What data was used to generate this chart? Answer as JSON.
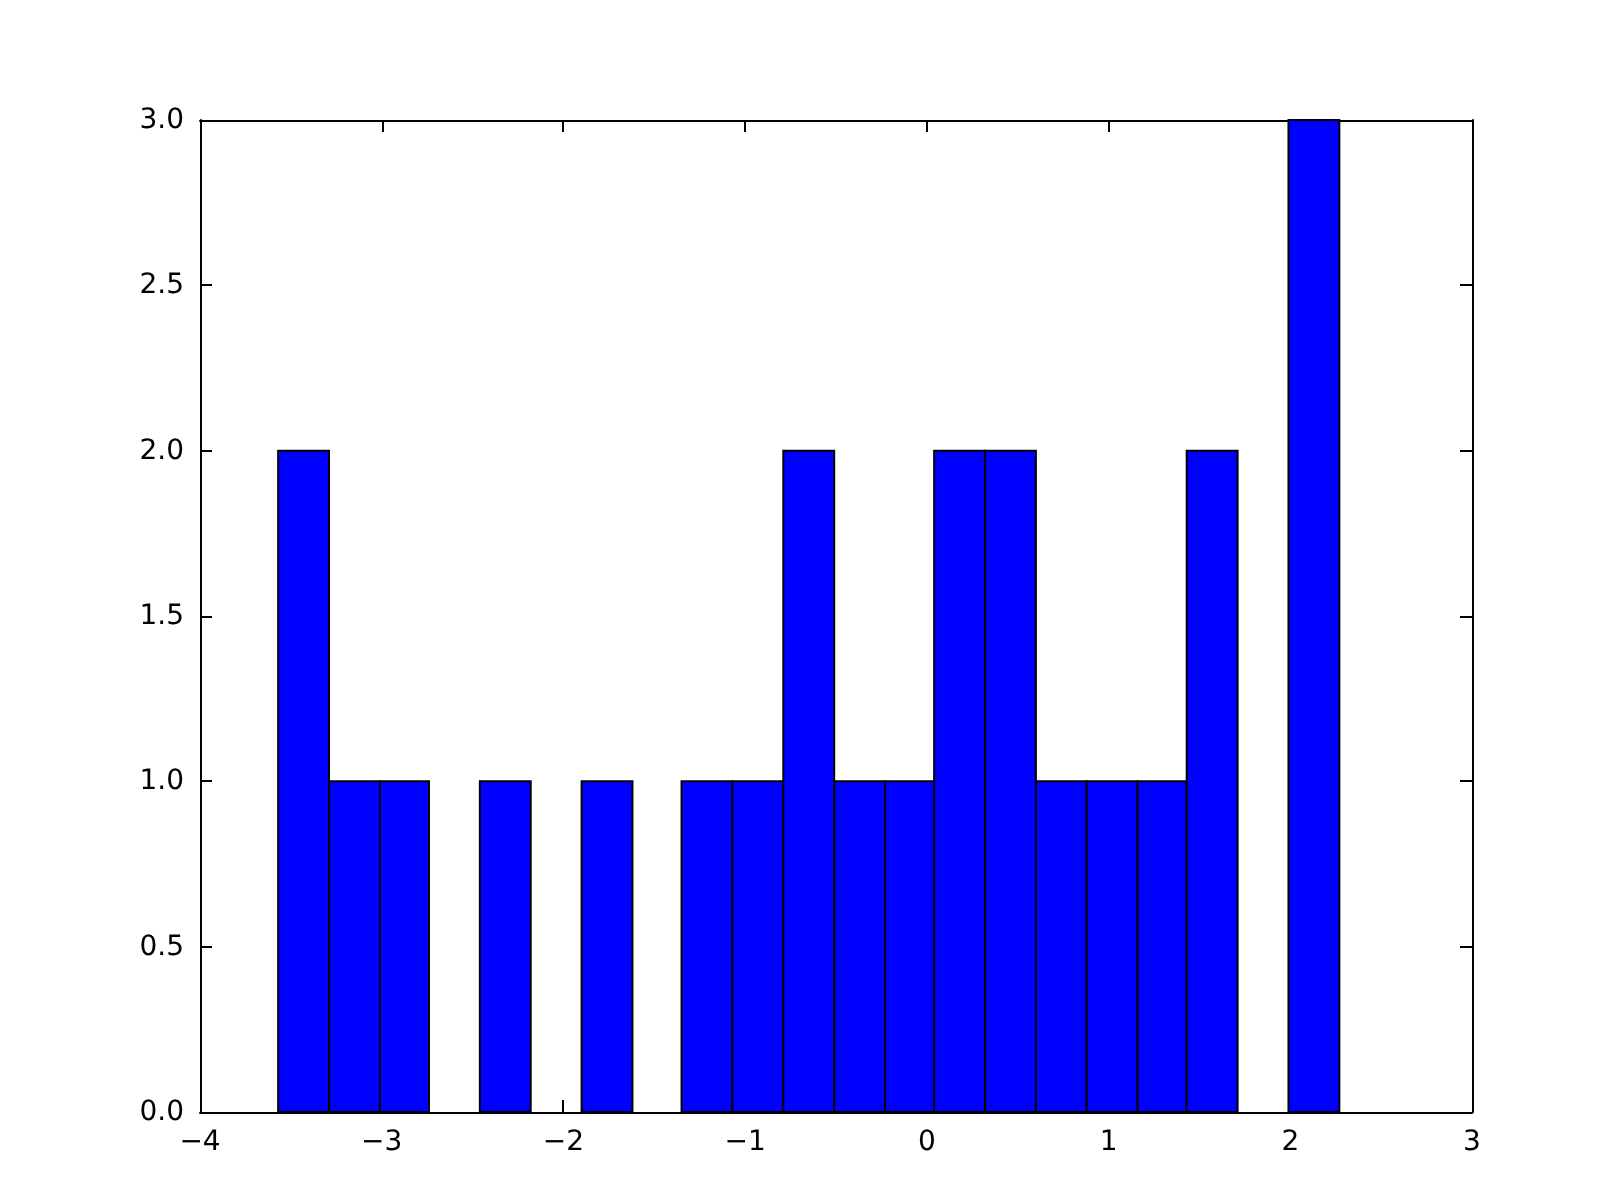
{
  "chart_data": {
    "type": "histogram",
    "bins": [
      -3.57,
      -3.29,
      -3.01,
      -2.74,
      -2.46,
      -2.18,
      -1.9,
      -1.62,
      -1.35,
      -1.07,
      -0.79,
      -0.51,
      -0.23,
      0.04,
      0.32,
      0.6,
      0.88,
      1.16,
      1.43,
      1.71,
      1.99,
      2.27
    ],
    "values": [
      2,
      1,
      1,
      0,
      1,
      0,
      1,
      0,
      1,
      1,
      2,
      1,
      1,
      2,
      2,
      1,
      1,
      1,
      2,
      0,
      3
    ],
    "color": "#0000ff",
    "xlim": [
      -4,
      3
    ],
    "xticks": [
      {
        "value": -4,
        "label": "−4"
      },
      {
        "value": -3,
        "label": "−3"
      },
      {
        "value": -2,
        "label": "−2"
      },
      {
        "value": -1,
        "label": "−1"
      },
      0,
      1,
      2,
      3
    ],
    "ylim": [
      0,
      3
    ],
    "yticks": [
      {
        "value": 0,
        "label": "0.0"
      },
      {
        "value": 0.5,
        "label": "0.5"
      },
      {
        "value": 1,
        "label": "1.0"
      },
      {
        "value": 1.5,
        "label": "1.5"
      },
      {
        "value": 2,
        "label": "2.0"
      },
      {
        "value": 2.5,
        "label": "2.5"
      },
      {
        "value": 3,
        "label": "3.0"
      }
    ],
    "grid": false
  }
}
